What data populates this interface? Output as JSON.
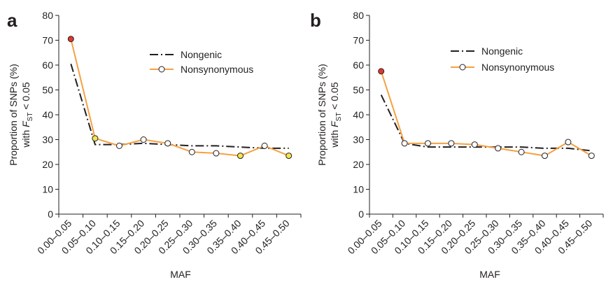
{
  "chart_data": [
    {
      "type": "line",
      "panel_label": "a",
      "categories": [
        "0.00–0.05",
        "0.05–0.10",
        "0.10–0.15",
        "0.15–0.20",
        "0.20–0.25",
        "0.25–0.30",
        "0.30–0.35",
        "0.35–0.40",
        "0.40–0.45",
        "0.45–0.50"
      ],
      "xlabel": "MAF",
      "ylabel_line1": "Proportion of SNPs (%)",
      "ylabel_line2_prefix": "with ",
      "ylabel_F": "F",
      "ylabel_sub": "ST",
      "ylabel_suffix": " < 0.05",
      "ylim": [
        0,
        80
      ],
      "yticks": [
        "0",
        "10",
        "20",
        "30",
        "40",
        "50",
        "60",
        "70",
        "80"
      ],
      "legend_position": "top-right",
      "series": [
        {
          "name": "Nongenic",
          "color": "#231f20",
          "style": "dash-dot",
          "values": [
            60.5,
            28,
            28,
            28.5,
            28,
            27.5,
            27.5,
            27,
            26.5,
            26.5
          ]
        },
        {
          "name": "Nonsynonymous",
          "color": "#f5a142",
          "style": "solid-with-markers",
          "values": [
            70.5,
            30.5,
            27.5,
            30,
            28.5,
            25,
            24.5,
            23.5,
            27.5,
            23.5
          ],
          "marker_fills": [
            "#e0382c",
            "#f2e64a",
            "#ffffff",
            "#ffffff",
            "#ffffff",
            "#ffffff",
            "#ffffff",
            "#f2e64a",
            "#ffffff",
            "#f2e64a"
          ]
        }
      ]
    },
    {
      "type": "line",
      "panel_label": "b",
      "categories": [
        "0.00–0.05",
        "0.05–0.10",
        "0.10–0.15",
        "0.15–0.20",
        "0.20–0.25",
        "0.25–0.30",
        "0.30–0.35",
        "0.35–0.40",
        "0.40–0.45",
        "0.45–0.50"
      ],
      "xlabel": "MAF",
      "ylabel_line1": "Proportion of SNPs (%)",
      "ylabel_line2_prefix": "with ",
      "ylabel_F": "F",
      "ylabel_sub": "ST",
      "ylabel_suffix": " < 0.05",
      "ylim": [
        0,
        80
      ],
      "yticks": [
        "0",
        "10",
        "20",
        "30",
        "40",
        "50",
        "60",
        "70",
        "80"
      ],
      "legend_position": "top-right",
      "series": [
        {
          "name": "Nongenic",
          "color": "#231f20",
          "style": "dash-dot",
          "values": [
            48,
            28.5,
            27,
            27,
            27,
            27,
            27,
            26.5,
            26.5,
            25.5
          ]
        },
        {
          "name": "Nonsynonymous",
          "color": "#f5a142",
          "style": "solid-with-markers",
          "values": [
            57.5,
            28.5,
            28.5,
            28.5,
            28,
            26.5,
            25,
            23.5,
            29,
            23.5
          ],
          "marker_fills": [
            "#e0382c",
            "#ffffff",
            "#ffffff",
            "#ffffff",
            "#ffffff",
            "#ffffff",
            "#ffffff",
            "#ffffff",
            "#ffffff",
            "#ffffff"
          ]
        }
      ]
    }
  ]
}
